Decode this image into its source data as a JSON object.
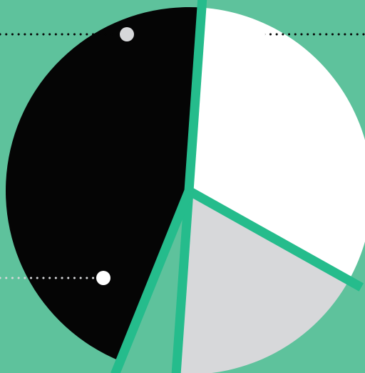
{
  "chart_data": {
    "type": "pie",
    "title": "",
    "legend": "none",
    "slices": [
      {
        "label": "",
        "value": 32,
        "color": "#ffffff"
      },
      {
        "label": "",
        "value": 18,
        "color": "#d7d8da"
      },
      {
        "label": "",
        "value": 5,
        "color": "#5ec29c"
      },
      {
        "label": "",
        "value": 45,
        "color": "#050505"
      }
    ]
  },
  "colors": {
    "background": "#5ec29c",
    "separator": "#25bc8c",
    "leader_white": "#ffffff",
    "leader_grey": "#d7d8da",
    "leader_black": "#050505"
  },
  "icons": [
    "callout-dot-icon"
  ]
}
